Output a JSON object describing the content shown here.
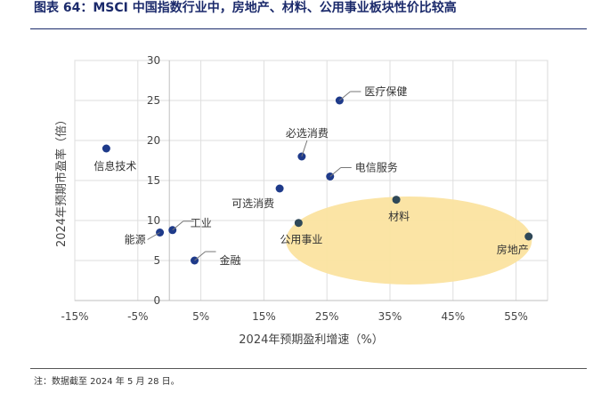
{
  "header": {
    "title": "图表 64：MSCI 中国指数行业中，房地产、材料、公用事业板块性价比较高"
  },
  "footer": {
    "note": "注：数据截至 2024 年 5 月 28 日。"
  },
  "chart_data": {
    "type": "scatter",
    "title": "",
    "xlabel": "2024年预期盈利增速（%）",
    "ylabel": "2024年预期市盈率（倍）",
    "xlim": [
      -15,
      60
    ],
    "ylim": [
      0,
      30
    ],
    "xticks": [
      -15,
      -5,
      5,
      15,
      25,
      35,
      45,
      55
    ],
    "xtick_labels": [
      "-15%",
      "-5%",
      "5%",
      "15%",
      "25%",
      "35%",
      "45%",
      "55%"
    ],
    "yticks": [
      0,
      5,
      10,
      15,
      20,
      25,
      30
    ],
    "ytick_labels": [
      "0",
      "5",
      "10",
      "15",
      "20",
      "25",
      "30"
    ],
    "grid": true,
    "highlight_region": {
      "cx": 38,
      "cy": 7.5,
      "rx": 19.5,
      "ry": 5.5,
      "color": "#fbe3a0"
    },
    "points": [
      {
        "name": "医疗保健",
        "x": 27,
        "y": 25,
        "color": "#1e3a8a",
        "label_pos": "leader-right"
      },
      {
        "name": "必选消费",
        "x": 21,
        "y": 18,
        "color": "#1e3a8a",
        "label_pos": "leader-up"
      },
      {
        "name": "电信服务",
        "x": 25.5,
        "y": 15.5,
        "color": "#1e3a8a",
        "label_pos": "leader-right"
      },
      {
        "name": "可选消费",
        "x": 17.5,
        "y": 14,
        "color": "#1e3a8a",
        "label_pos": "left"
      },
      {
        "name": "信息技术",
        "x": -10,
        "y": 19,
        "color": "#1e3a8a",
        "label_pos": "below"
      },
      {
        "name": "工业",
        "x": 0.5,
        "y": 8.8,
        "color": "#1e3a8a",
        "label_pos": "leader-right"
      },
      {
        "name": "能源",
        "x": -1.5,
        "y": 8.5,
        "color": "#1e3a8a",
        "label_pos": "leader-left"
      },
      {
        "name": "金融",
        "x": 4,
        "y": 5,
        "color": "#1e3a8a",
        "label_pos": "leader-right"
      },
      {
        "name": "公用事业",
        "x": 20.5,
        "y": 9.7,
        "color": "#2f4858",
        "label_pos": "below"
      },
      {
        "name": "材料",
        "x": 36,
        "y": 12.6,
        "color": "#2f4858",
        "label_pos": "below"
      },
      {
        "name": "房地产",
        "x": 57,
        "y": 8,
        "color": "#2f4858",
        "label_pos": "below-left"
      }
    ]
  }
}
